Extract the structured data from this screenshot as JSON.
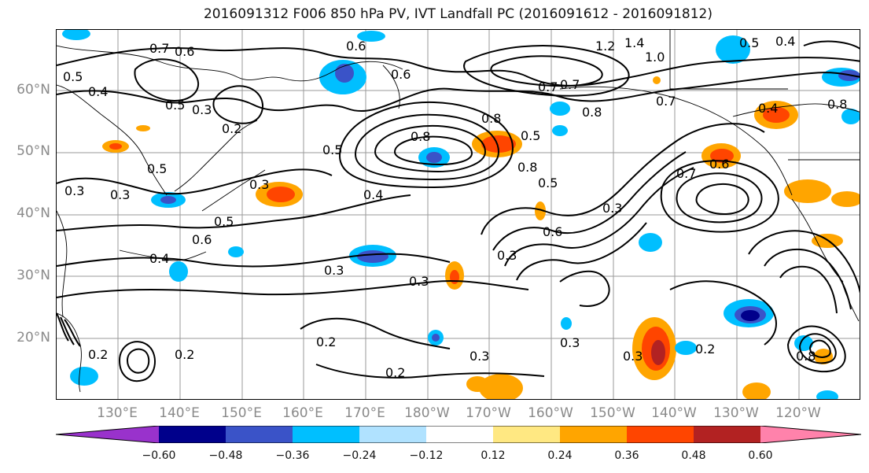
{
  "title": "2016091312 F006 850 hPa PV, IVT Landfall PC (2016091612 - 2016091812)",
  "lat_labels": [
    "60°N",
    "50°N",
    "40°N",
    "30°N",
    "20°N"
  ],
  "lon_labels": [
    "130°E",
    "140°E",
    "150°E",
    "160°E",
    "170°E",
    "180°W",
    "170°W",
    "160°W",
    "150°W",
    "140°W",
    "130°W",
    "120°W"
  ],
  "contour_labels": [
    "0.7",
    "0.6",
    "0.5",
    "0.4",
    "0.5",
    "0.3",
    "0.2",
    "0.5",
    "0.6",
    "0.8",
    "0.5",
    "0.4",
    "0.3",
    "0.5",
    "0.6",
    "0.4",
    "0.3",
    "0.3",
    "0.2",
    "0.2",
    "0.2",
    "0.3",
    "0.3",
    "0.8",
    "0.5",
    "0.7",
    "0.8",
    "0.7",
    "1.2",
    "1.4",
    "1.0",
    "0.6",
    "0.3",
    "0.7",
    "0.6",
    "0.5",
    "0.3",
    "0.3",
    "0.2",
    "0.8",
    "0.3",
    "0.2",
    "0.3",
    "0.5",
    "0.4",
    "0.8",
    "0.6",
    "0.4",
    "0.7",
    "0.8"
  ],
  "colorbar": {
    "colors": [
      "#9932cc",
      "#00008b",
      "#3a53c8",
      "#00bfff",
      "#b0e2ff",
      "#ffffff",
      "#ffe882",
      "#ffa500",
      "#ff4500",
      "#b22222",
      "#ff82ab"
    ],
    "ticks": [
      "−0.60",
      "−0.48",
      "−0.36",
      "−0.24",
      "−0.12",
      "0.12",
      "0.24",
      "0.36",
      "0.48",
      "0.60"
    ]
  }
}
